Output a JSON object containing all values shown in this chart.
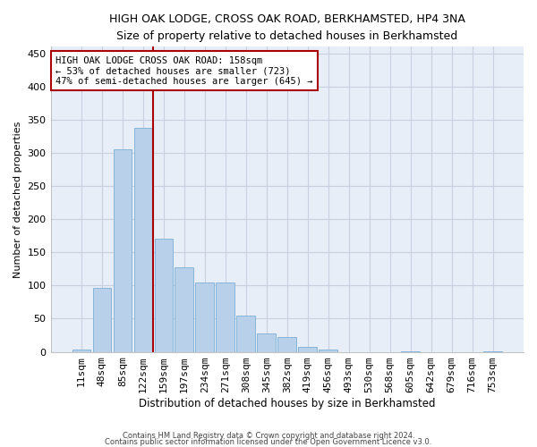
{
  "title1": "HIGH OAK LODGE, CROSS OAK ROAD, BERKHAMSTED, HP4 3NA",
  "title2": "Size of property relative to detached houses in Berkhamsted",
  "xlabel": "Distribution of detached houses by size in Berkhamsted",
  "ylabel": "Number of detached properties",
  "footer1": "Contains HM Land Registry data © Crown copyright and database right 2024.",
  "footer2": "Contains public sector information licensed under the Open Government Licence v3.0.",
  "annotation_line1": "HIGH OAK LODGE CROSS OAK ROAD: 158sqm",
  "annotation_line2": "← 53% of detached houses are smaller (723)",
  "annotation_line3": "47% of semi-detached houses are larger (645) →",
  "categories": [
    "11sqm",
    "48sqm",
    "85sqm",
    "122sqm",
    "159sqm",
    "197sqm",
    "234sqm",
    "271sqm",
    "308sqm",
    "345sqm",
    "382sqm",
    "419sqm",
    "456sqm",
    "493sqm",
    "530sqm",
    "568sqm",
    "605sqm",
    "642sqm",
    "679sqm",
    "716sqm",
    "753sqm"
  ],
  "bar_values": [
    3,
    97,
    305,
    338,
    170,
    128,
    105,
    105,
    55,
    28,
    22,
    7,
    3,
    0,
    0,
    0,
    1,
    0,
    0,
    0,
    1
  ],
  "bar_color": "#b8d0ea",
  "bar_edge_color": "#7aafd4",
  "vline_color": "#aa0000",
  "annotation_box_color": "#aa0000",
  "background_color": "#e8eef8",
  "grid_color": "#c8d0e0",
  "ylim": [
    0,
    460
  ],
  "yticks": [
    0,
    50,
    100,
    150,
    200,
    250,
    300,
    350,
    400,
    450
  ],
  "vline_index": 3.5
}
